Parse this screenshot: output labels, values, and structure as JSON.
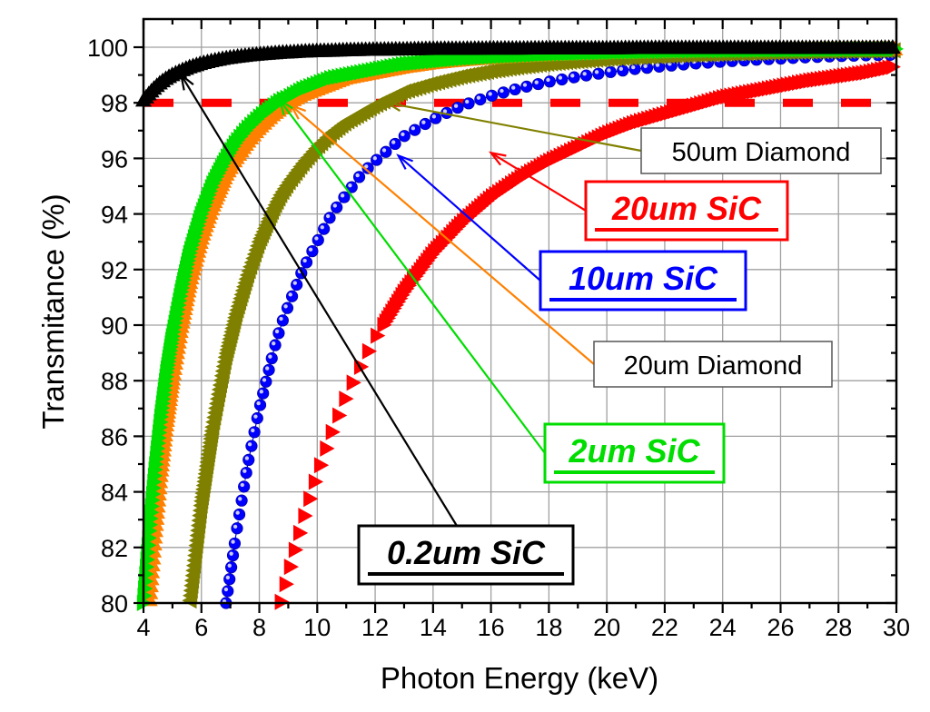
{
  "chart_data": {
    "type": "scatter",
    "title": "",
    "xlabel": "Photon Energy (keV)",
    "ylabel": "Transmitance (%)",
    "xlim": [
      4,
      30
    ],
    "ylim": [
      80,
      100.7
    ],
    "xticks": [
      4,
      6,
      8,
      10,
      12,
      14,
      16,
      18,
      20,
      22,
      24,
      26,
      28,
      30
    ],
    "yticks": [
      80,
      82,
      84,
      86,
      88,
      90,
      92,
      94,
      96,
      98,
      100
    ],
    "grid": true,
    "reference_line": {
      "y": 98,
      "color": "#ff0000",
      "style": "dashed"
    },
    "x": [
      4.0,
      4.2,
      4.4,
      4.6,
      4.8,
      5.0,
      5.3,
      5.6,
      6.0,
      6.4,
      6.85,
      7.2,
      7.6,
      8.0,
      8.5,
      8.75,
      9.0,
      9.5,
      10.0,
      10.5,
      11.0,
      11.5,
      12.0,
      13.0,
      14.0,
      15.0,
      16.0,
      17.0,
      18.0,
      19.0,
      20.0,
      21.0,
      22.0,
      23.0,
      24.0,
      25.0,
      26.0,
      27.0,
      28.0,
      29.0,
      30.0
    ],
    "series": [
      {
        "name": "0.2um SiC",
        "color": "#000000",
        "marker": "triangle-up",
        "values": [
          98.1,
          98.35,
          98.57,
          98.75,
          98.9,
          99.02,
          99.17,
          99.3,
          99.43,
          99.53,
          99.62,
          99.67,
          99.72,
          99.76,
          99.8,
          99.82,
          99.83,
          99.86,
          99.88,
          99.89,
          99.91,
          99.92,
          99.93,
          99.94,
          99.96,
          99.96,
          99.97,
          99.97,
          99.98,
          99.98,
          99.98,
          99.99,
          99.99,
          99.99,
          99.99,
          99.99,
          99.99,
          99.99,
          99.99,
          99.99,
          100.0
        ]
      },
      {
        "name": "2um SiC",
        "color": "#00dd00",
        "marker": "triangle-right",
        "values": [
          80.0,
          82.6,
          84.8,
          86.7,
          88.3,
          89.6,
          91.2,
          92.6,
          94.0,
          95.1,
          96.0,
          96.6,
          97.1,
          97.5,
          97.9,
          98.1,
          98.2,
          98.5,
          98.7,
          98.9,
          99.0,
          99.1,
          99.2,
          99.4,
          99.5,
          99.6,
          99.66,
          99.71,
          99.76,
          99.79,
          99.82,
          99.84,
          99.86,
          99.88,
          99.89,
          99.9,
          99.91,
          99.92,
          99.93,
          99.94,
          99.94
        ]
      },
      {
        "name": "20um Diamond",
        "color": "#ff8000",
        "marker": "triangle-up",
        "values": [
          null,
          80.0,
          82.5,
          84.7,
          86.5,
          88.0,
          89.9,
          91.5,
          93.1,
          94.3,
          95.4,
          96.0,
          96.6,
          97.1,
          97.6,
          97.8,
          98.0,
          98.3,
          98.5,
          98.7,
          98.9,
          99.0,
          99.1,
          99.3,
          99.45,
          99.55,
          99.63,
          99.69,
          99.74,
          99.78,
          99.81,
          99.83,
          99.85,
          99.87,
          99.89,
          99.9,
          99.91,
          99.92,
          99.93,
          99.94,
          99.94
        ]
      },
      {
        "name": "50um Diamond",
        "color": "#808000",
        "marker": "triangle-left",
        "values": [
          null,
          null,
          null,
          null,
          null,
          null,
          null,
          80.0,
          83.6,
          86.4,
          88.9,
          90.4,
          91.8,
          93.0,
          94.2,
          94.7,
          95.1,
          95.8,
          96.4,
          96.9,
          97.3,
          97.6,
          97.9,
          98.4,
          98.7,
          98.95,
          99.14,
          99.29,
          99.41,
          99.5,
          99.58,
          99.64,
          99.69,
          99.73,
          99.76,
          99.79,
          99.82,
          99.84,
          99.86,
          99.87,
          99.89
        ]
      },
      {
        "name": "10um SiC",
        "color": "#0000ff",
        "marker": "sphere",
        "values": [
          null,
          null,
          null,
          null,
          null,
          null,
          null,
          null,
          null,
          null,
          80.0,
          82.5,
          85.0,
          87.0,
          89.1,
          90.0,
          90.7,
          92.0,
          93.0,
          94.0,
          94.7,
          95.4,
          95.9,
          96.8,
          97.4,
          97.9,
          98.25,
          98.53,
          98.76,
          98.94,
          99.09,
          99.22,
          99.32,
          99.41,
          99.48,
          99.54,
          99.59,
          99.64,
          99.68,
          99.71,
          99.73
        ]
      },
      {
        "name": "20um SiC",
        "color": "#ff0000",
        "marker": "triangle-right",
        "values": [
          null,
          null,
          null,
          null,
          null,
          null,
          null,
          null,
          null,
          null,
          null,
          null,
          null,
          null,
          null,
          80.0,
          81.0,
          82.9,
          84.6,
          86.1,
          87.4,
          88.5,
          89.5,
          91.2,
          92.6,
          93.7,
          94.6,
          95.3,
          95.9,
          96.4,
          96.9,
          97.3,
          97.6,
          97.9,
          98.2,
          98.4,
          98.6,
          98.8,
          98.95,
          99.1,
          99.32
        ]
      }
    ],
    "annotations": [
      {
        "text": "50um Diamond",
        "series": "50um Diamond",
        "text_color": "#000000",
        "border_color": "#555555",
        "bold_italic_underline": false,
        "arrow_color": "#808000",
        "arrow_target": [
          12.4,
          98.0
        ]
      },
      {
        "text": "20um SiC",
        "series": "20um SiC",
        "text_color": "#ff0000",
        "border_color": "#ff0000",
        "bold_italic_underline": true,
        "arrow_color": "#ff0000",
        "arrow_target": [
          16.0,
          96.2
        ]
      },
      {
        "text": "10um SiC",
        "series": "10um SiC",
        "text_color": "#0000ff",
        "border_color": "#0000ff",
        "bold_italic_underline": true,
        "arrow_color": "#0000ff",
        "arrow_target": [
          12.8,
          96.1
        ]
      },
      {
        "text": "20um Diamond",
        "series": "20um Diamond",
        "text_color": "#000000",
        "border_color": "#555555",
        "bold_italic_underline": false,
        "arrow_color": "#ff8000",
        "arrow_target": [
          9.1,
          97.9
        ]
      },
      {
        "text": "2um SiC",
        "series": "2um SiC",
        "text_color": "#00dd00",
        "border_color": "#00dd00",
        "bold_italic_underline": true,
        "arrow_color": "#00dd00",
        "arrow_target": [
          8.7,
          98.1
        ]
      },
      {
        "text": "0.2um SiC",
        "series": "0.2um SiC",
        "text_color": "#000000",
        "border_color": "#000000",
        "bold_italic_underline": true,
        "arrow_color": "#000000",
        "arrow_target": [
          5.3,
          99.0
        ]
      }
    ]
  }
}
